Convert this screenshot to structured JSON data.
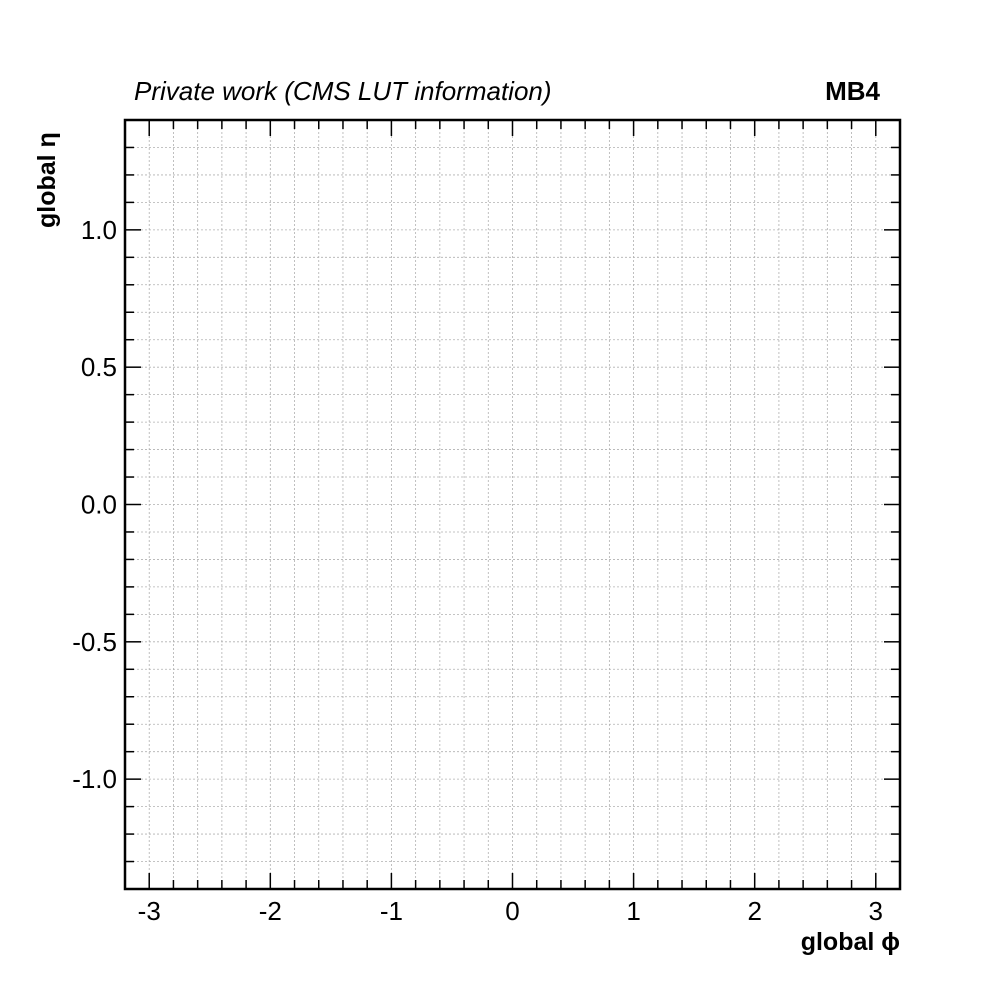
{
  "header": {
    "label": "Private work (CMS LUT information)",
    "station": "MB4"
  },
  "chart_data": {
    "type": "scatter",
    "title": "",
    "xlabel": "global ϕ",
    "ylabel": "global η",
    "xlim": [
      -3.2,
      3.2
    ],
    "ylim": [
      -1.4,
      1.4
    ],
    "x_ticks": [
      -3,
      -2,
      -1,
      0,
      1,
      2,
      3
    ],
    "x_tick_labels": [
      "-3",
      "-2",
      "-1",
      "0",
      "1",
      "2",
      "3"
    ],
    "y_ticks": [
      -1.0,
      -0.5,
      0.0,
      0.5,
      1.0
    ],
    "y_tick_labels": [
      "-1.0",
      "-0.5",
      "0.0",
      "0.5",
      "1.0"
    ],
    "grid": true,
    "series": []
  }
}
